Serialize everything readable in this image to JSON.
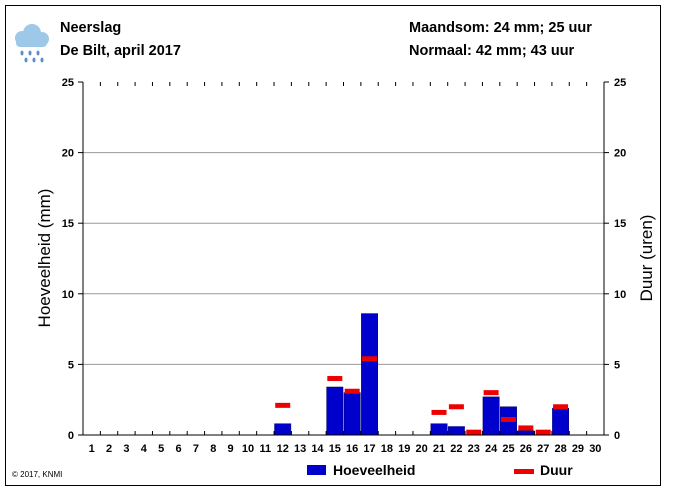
{
  "header": {
    "title": "Neerslag",
    "subtitle": "De Bilt, april 2017",
    "month_total": "Maandsom: 24 mm; 25 uur",
    "normal": "Normaal: 42 mm; 43 uur",
    "icon": "rain-cloud-icon"
  },
  "footer": {
    "copyright": "© 2017, KNMI"
  },
  "colors": {
    "bar": "#0000cc",
    "bar_edge": "#000066",
    "duration": "#ee0000",
    "grid": "#999999",
    "icon_cloud": "#9ec8e8",
    "icon_drops": "#5a8fc4"
  },
  "chart_data": {
    "type": "bar",
    "title": "Neerslag",
    "xlabel": "",
    "ylabel": "Hoeveelheid (mm)",
    "y2label": "Duur (uren)",
    "ylim": [
      0,
      25
    ],
    "y2lim": [
      0,
      25
    ],
    "yticks": [
      "0",
      "5",
      "10",
      "15",
      "20",
      "25"
    ],
    "grid": true,
    "categories": [
      "1",
      "2",
      "3",
      "4",
      "5",
      "6",
      "7",
      "8",
      "9",
      "10",
      "11",
      "12",
      "13",
      "14",
      "15",
      "16",
      "17",
      "18",
      "19",
      "20",
      "21",
      "22",
      "23",
      "24",
      "25",
      "26",
      "27",
      "28",
      "29",
      "30"
    ],
    "series": [
      {
        "name": "Hoeveelheid",
        "kind": "bar",
        "values": [
          0,
          0,
          0,
          0,
          0,
          0,
          0,
          0,
          0,
          0,
          0,
          0.8,
          0,
          0,
          3.4,
          3.0,
          8.6,
          0,
          0,
          0,
          0.8,
          0.6,
          0,
          2.7,
          2.0,
          0.3,
          0,
          1.9,
          0,
          0
        ]
      },
      {
        "name": "Duur",
        "kind": "marker",
        "values": [
          0,
          0,
          0,
          0,
          0,
          0,
          0,
          0,
          0,
          0,
          0,
          2.1,
          0,
          0,
          4.0,
          3.1,
          5.4,
          0,
          0,
          0,
          1.6,
          2.0,
          0.2,
          3.0,
          1.1,
          0.5,
          0.2,
          2.0,
          0,
          0
        ]
      }
    ],
    "legend": [
      "Hoeveelheid",
      "Duur"
    ],
    "legend_position": "bottom"
  }
}
